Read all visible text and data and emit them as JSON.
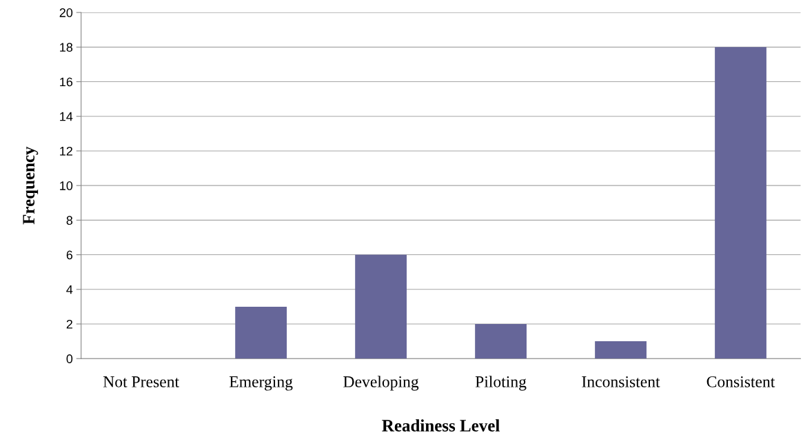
{
  "chart_data": {
    "type": "bar",
    "xlabel": "Readiness Level",
    "ylabel": "Frequency",
    "categories": [
      "Not Present",
      "Emerging",
      "Developing",
      "Piloting",
      "Inconsistent",
      "Consistent"
    ],
    "values": [
      0,
      3,
      6,
      2,
      1,
      18
    ],
    "color": "#666699",
    "ylim": [
      0,
      20
    ],
    "yticks": [
      0,
      2,
      4,
      6,
      8,
      10,
      12,
      14,
      16,
      18,
      20
    ],
    "grid": "y",
    "legend": false
  }
}
